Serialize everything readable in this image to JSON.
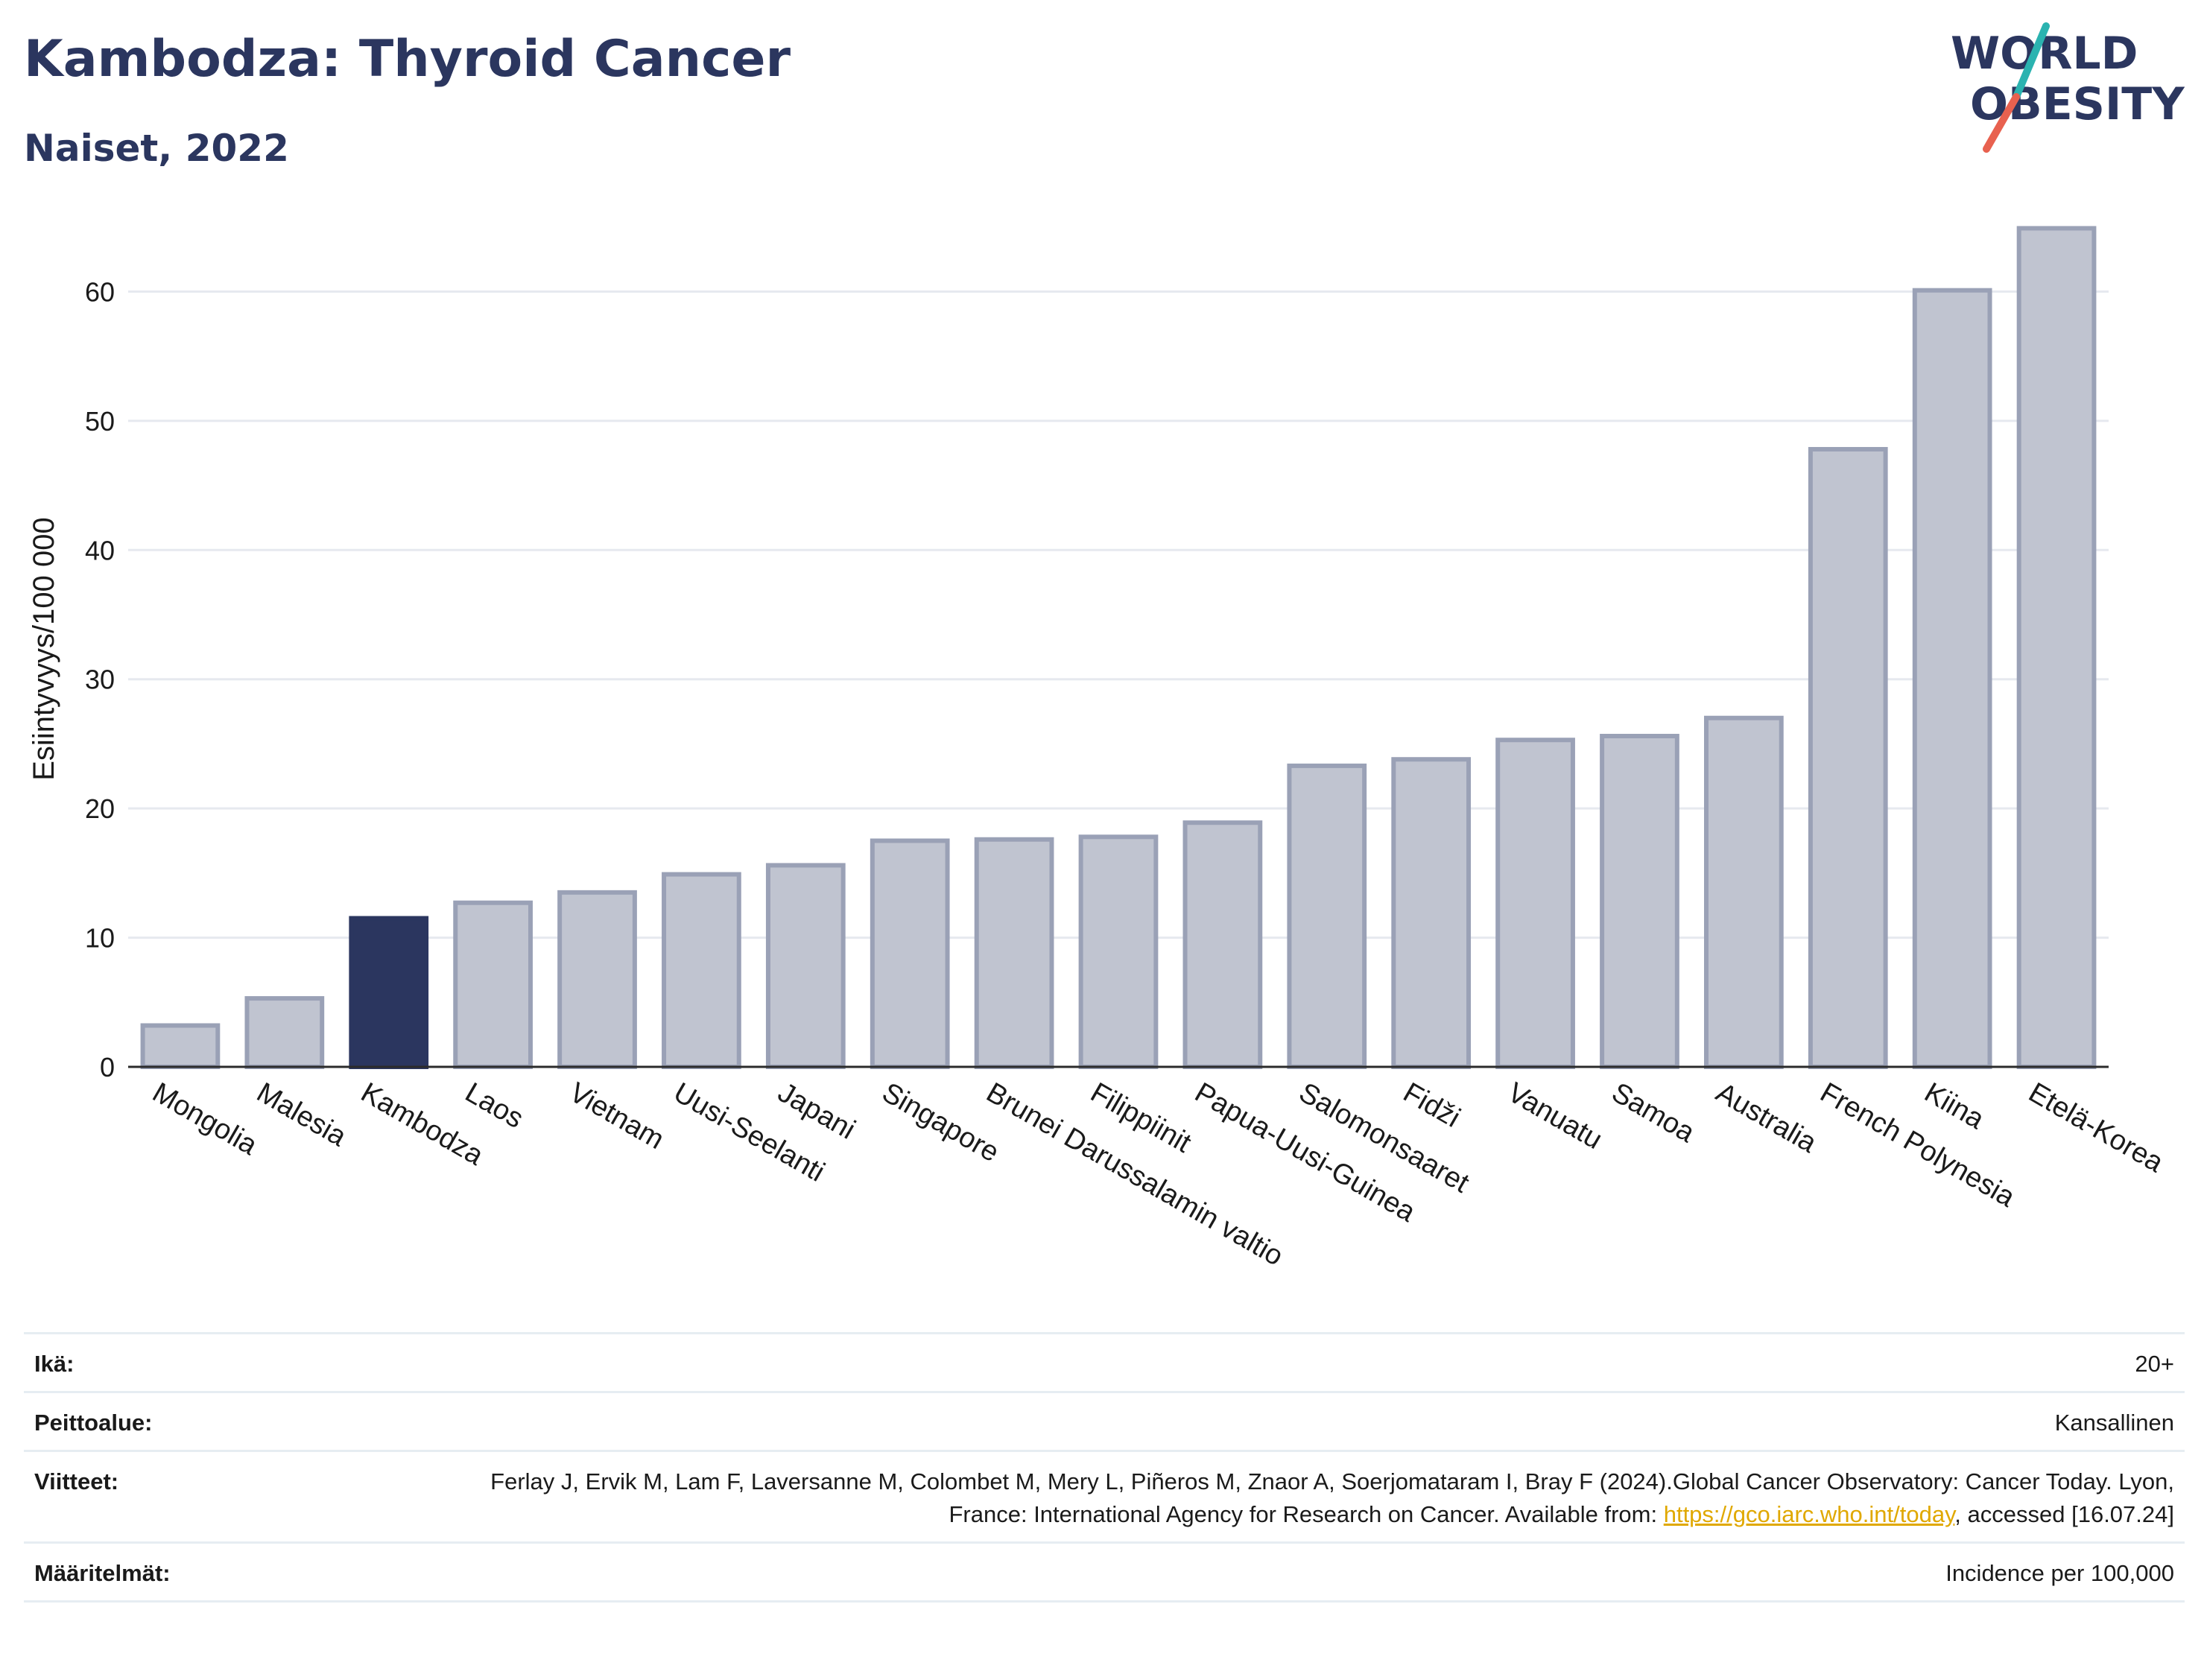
{
  "header": {
    "title": "Kambodza: Thyroid Cancer",
    "subtitle": "Naiset, 2022"
  },
  "logo": {
    "line1": "WORLD",
    "line2": "OBESITY",
    "colors": {
      "text": "#2b365f",
      "slash_teal": "#2bb3b0",
      "slash_red": "#e8614f"
    }
  },
  "chart_data": {
    "type": "bar",
    "title": "Kambodza: Thyroid Cancer",
    "subtitle": "Naiset, 2022",
    "xlabel": "",
    "ylabel": "Esiintyvyys/100 000",
    "ylim": [
      0,
      67
    ],
    "yticks": [
      0,
      10,
      20,
      30,
      40,
      50,
      60
    ],
    "grid": true,
    "highlight": "Kambodza",
    "colors": {
      "bar": "#c0c4d0",
      "bar_edge": "#9aa1b6",
      "highlight": "#2b365f",
      "axis": "#2b2b2b",
      "grid": "#e6e9ef"
    },
    "categories": [
      "Mongolia",
      "Malesia",
      "Kambodza",
      "Laos",
      "Vietnam",
      "Uusi-Seelanti",
      "Japani",
      "Singapore",
      "Brunei Darussalamin valtio",
      "Filippiinit",
      "Papua-Uusi-Guinea",
      "Salomonsaaret",
      "Fidži",
      "Vanuatu",
      "Samoa",
      "Australia",
      "French Polynesia",
      "Kiina",
      "Etelä-Korea"
    ],
    "values": [
      3.2,
      5.3,
      11.5,
      12.7,
      13.5,
      14.9,
      15.6,
      17.5,
      17.6,
      17.8,
      18.9,
      23.3,
      23.8,
      25.3,
      25.6,
      27.0,
      47.8,
      60.1,
      64.9
    ]
  },
  "info": {
    "age_label": "Ikä:",
    "age_value": "20+",
    "coverage_label": "Peittoalue:",
    "coverage_value": "Kansallinen",
    "references_label": "Viitteet:",
    "references_text": "Ferlay J, Ervik M, Lam F, Laversanne M, Colombet M, Mery L, Piñeros M, Znaor A, Soerjomataram I, Bray F (2024).Global Cancer Observatory: Cancer Today. Lyon, France: International Agency for Research on Cancer. Available from: ",
    "references_link": "https://gco.iarc.who.int/today",
    "references_tail": ", accessed [16.07.24]",
    "definitions_label": "Määritelmät:",
    "definitions_value": "Incidence per 100,000"
  }
}
